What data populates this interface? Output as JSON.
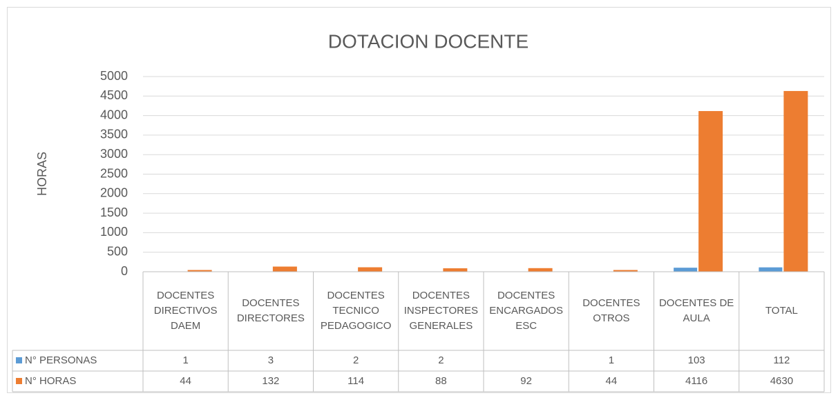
{
  "chart_data": {
    "type": "bar",
    "title": "DOTACION DOCENTE",
    "y_label": "HORAS",
    "categories": [
      "DOCENTES DIRECTIVOS DAEM",
      "DOCENTES DIRECTORES",
      "DOCENTES TECNICO PEDAGOGICO",
      "DOCENTES INSPECTORES GENERALES",
      "DOCENTES ENCARGADOS ESC",
      "DOCENTES OTROS",
      "DOCENTES DE AULA",
      "TOTAL"
    ],
    "series": [
      {
        "name": "N° PERSONAS",
        "color": "#5b9bd5",
        "values": [
          1,
          3,
          2,
          2,
          null,
          1,
          103,
          112
        ]
      },
      {
        "name": "N° HORAS",
        "color": "#ed7d31",
        "values": [
          44,
          132,
          114,
          88,
          92,
          44,
          4116,
          4630
        ]
      }
    ],
    "ylim": [
      0,
      5000
    ],
    "yticks": [
      0,
      500,
      1000,
      1500,
      2000,
      2500,
      3000,
      3500,
      4000,
      4500,
      5000
    ],
    "grid": true,
    "data_table": true
  }
}
